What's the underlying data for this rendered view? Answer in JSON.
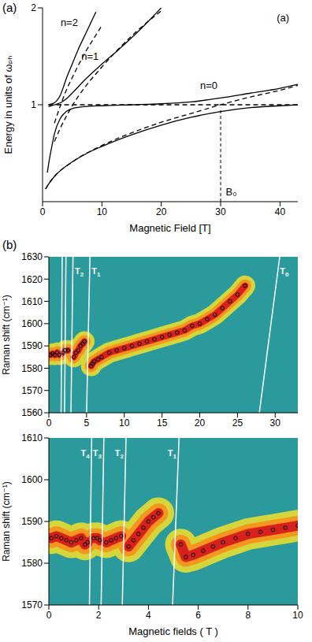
{
  "chart_data": [
    {
      "type": "line",
      "panel_label": "(a)",
      "x_label": "Magnetic Field [T]",
      "y_label": "Energy in units of ωₚₕ",
      "xlim": [
        0,
        43
      ],
      "xticks": [
        0,
        10,
        20,
        30,
        40
      ],
      "ylim": [
        0,
        2
      ],
      "yticks": [
        1,
        2
      ],
      "series": [
        {
          "x": [
            0.5,
            1,
            2,
            3,
            5,
            7.5,
            10,
            15,
            20,
            25,
            30,
            35,
            40,
            43
          ],
          "values": [
            0.13,
            0.18,
            0.26,
            0.32,
            0.41,
            0.5,
            0.57,
            0.69,
            0.79,
            0.87,
            0.93,
            0.97,
            0.99,
            1.0
          ],
          "line_style": "solid",
          "color": "#000000"
        },
        {
          "x": [
            0.8,
            1,
            1.5,
            2,
            3,
            4,
            5,
            7,
            10,
            15,
            20,
            25,
            30,
            35,
            40,
            43
          ],
          "values": [
            0.3,
            0.38,
            0.55,
            0.7,
            0.86,
            0.93,
            0.96,
            0.98,
            0.99,
            1.0,
            1.01,
            1.03,
            1.07,
            1.12,
            1.17,
            1.21
          ],
          "line_style": "solid",
          "color": "#000000"
        },
        {
          "x": [
            1,
            2,
            3,
            4,
            5,
            7,
            10,
            13,
            16,
            20
          ],
          "values": [
            0.98,
            1.0,
            1.02,
            1.06,
            1.12,
            1.25,
            1.42,
            1.58,
            1.75,
            2.0
          ],
          "line_style": "solid",
          "color": "#000000"
        },
        {
          "x": [
            1,
            2,
            2.5,
            3,
            3.5,
            4,
            5,
            6,
            7,
            8,
            9
          ],
          "values": [
            1.0,
            1.02,
            1.05,
            1.1,
            1.18,
            1.27,
            1.42,
            1.57,
            1.7,
            1.83,
            1.96
          ],
          "line_style": "solid",
          "color": "#000000"
        },
        {
          "x": [
            0.5,
            1,
            2,
            5,
            10,
            15,
            20,
            25,
            30,
            35,
            40,
            43
          ],
          "values": [
            0.13,
            0.18,
            0.26,
            0.41,
            0.58,
            0.71,
            0.82,
            0.91,
            1.0,
            1.08,
            1.15,
            1.2
          ],
          "line_style": "dashed",
          "color": "#000000"
        },
        {
          "x": [
            1,
            43
          ],
          "values": [
            1,
            1
          ],
          "line_style": "dashed",
          "color": "#000000"
        },
        {
          "x": [
            2,
            3,
            4,
            5,
            7,
            10,
            15,
            20
          ],
          "values": [
            0.62,
            0.76,
            0.88,
            0.99,
            1.17,
            1.39,
            1.71,
            1.97
          ],
          "line_style": "dashed",
          "color": "#000000"
        },
        {
          "x": [
            2,
            3,
            4,
            5,
            7,
            9,
            10
          ],
          "values": [
            0.81,
            0.99,
            1.15,
            1.28,
            1.52,
            1.72,
            1.82
          ],
          "line_style": "dashed",
          "color": "#000000"
        }
      ],
      "annotations": [
        {
          "text": "n=2",
          "x": 4.5,
          "y": 1.85
        },
        {
          "text": "n=1",
          "x": 8,
          "y": 1.5
        },
        {
          "text": "n=0",
          "x": 28,
          "y": 1.2
        },
        {
          "text": "(a)",
          "x": 40.5,
          "y": 1.9
        },
        {
          "text": "B₀",
          "x": 31.8,
          "y": 0.1
        }
      ],
      "reference_lines": [
        {
          "x": [
            30,
            30
          ],
          "y": [
            0,
            0.97
          ],
          "line_style": "dashed"
        }
      ]
    },
    {
      "type": "scatter",
      "panel_label": "(b)",
      "y_label": "Raman shift (cm⁻¹)",
      "xlim": [
        0,
        33
      ],
      "xticks": [
        0,
        5,
        10,
        15,
        20,
        25,
        30
      ],
      "ylim": [
        1560,
        1630
      ],
      "yticks": [
        1560,
        1570,
        1580,
        1590,
        1600,
        1610,
        1620,
        1630
      ],
      "series": [
        {
          "x": [
            0.2,
            0.5,
            0.8,
            1.1,
            1.4,
            1.9,
            2.2,
            2.5,
            2.7,
            3.3,
            3.6,
            3.9,
            4.2,
            4.5,
            4.7,
            4.9,
            5.6,
            5.8,
            6,
            6.5,
            7,
            8,
            9,
            10,
            11,
            12,
            13,
            14,
            15,
            16,
            17,
            18,
            19,
            20,
            21,
            22,
            23,
            24,
            25,
            26
          ],
          "values": [
            1586,
            1586.5,
            1586,
            1587,
            1586,
            1587,
            1588,
            1588,
            null,
            1585,
            1587,
            1588,
            1590,
            1591,
            1592,
            null,
            1581,
            1582,
            1583,
            1584,
            1585,
            1587,
            1588,
            1589,
            1590,
            1591,
            1592,
            1593,
            1594,
            1595,
            1596,
            1597,
            1599,
            1600,
            1602,
            1604,
            1607,
            1610,
            1613,
            1617
          ],
          "marker": "circle",
          "color": "#000000"
        }
      ],
      "lines": [
        {
          "x": [
            1.62,
            1.77
          ],
          "y": [
            1560,
            1630
          ]
        },
        {
          "x": [
            2.08,
            2.27
          ],
          "y": [
            1560,
            1630
          ]
        },
        {
          "x": [
            2.93,
            3.2
          ],
          "y": [
            1560,
            1630
          ],
          "label": "T2"
        },
        {
          "x": [
            5.0,
            5.45
          ],
          "y": [
            1560,
            1630
          ],
          "label": "T1"
        },
        {
          "x": [
            27.9,
            30.6
          ],
          "y": [
            1560,
            1630
          ],
          "label": "T0"
        }
      ]
    },
    {
      "type": "scatter",
      "x_label": "Magnetic fields ( T )",
      "y_label": "Raman shift (cm⁻¹)",
      "xlim": [
        0,
        10
      ],
      "xticks": [
        0,
        2,
        4,
        6,
        8,
        10
      ],
      "ylim": [
        1570,
        1610
      ],
      "yticks": [
        1570,
        1580,
        1590,
        1600,
        1610
      ],
      "series": [
        {
          "x": [
            0.1,
            0.3,
            0.5,
            0.7,
            0.9,
            1.1,
            1.3,
            1.45,
            1.56,
            1.68,
            1.8,
            1.95,
            2.05,
            2.18,
            2.3,
            2.5,
            2.7,
            2.9,
            3.0,
            3.2,
            3.4,
            3.6,
            3.8,
            4.0,
            4.2,
            4.4,
            4.9,
            5.3,
            5.5,
            5.8,
            6.2,
            6.6,
            7,
            7.5,
            8,
            8.5,
            9,
            9.5,
            10
          ],
          "values": [
            1586,
            1586.5,
            1586,
            1585.5,
            1585,
            1585.5,
            1586,
            1584.5,
            1585,
            null,
            1586,
            1586,
            1585.5,
            null,
            1585,
            1585.5,
            1586,
            1586.5,
            null,
            1584,
            1585.5,
            1587,
            1588.5,
            1590,
            1591,
            1592,
            null,
            1584.5,
            1581.5,
            1582,
            1583,
            1584,
            1585,
            1586,
            1587,
            1587.5,
            1588,
            1588.5,
            1589
          ],
          "marker": "circle",
          "color": "#000000"
        }
      ],
      "lines": [
        {
          "x": [
            1.63,
            1.72
          ],
          "y": [
            1570,
            1610
          ],
          "label": "T4"
        },
        {
          "x": [
            2.1,
            2.21
          ],
          "y": [
            1570,
            1610
          ],
          "label": "T3"
        },
        {
          "x": [
            2.95,
            3.1
          ],
          "y": [
            1570,
            1610
          ],
          "label": "T2"
        },
        {
          "x": [
            4.97,
            5.23
          ],
          "y": [
            1570,
            1610
          ],
          "label": "T1"
        }
      ]
    }
  ]
}
